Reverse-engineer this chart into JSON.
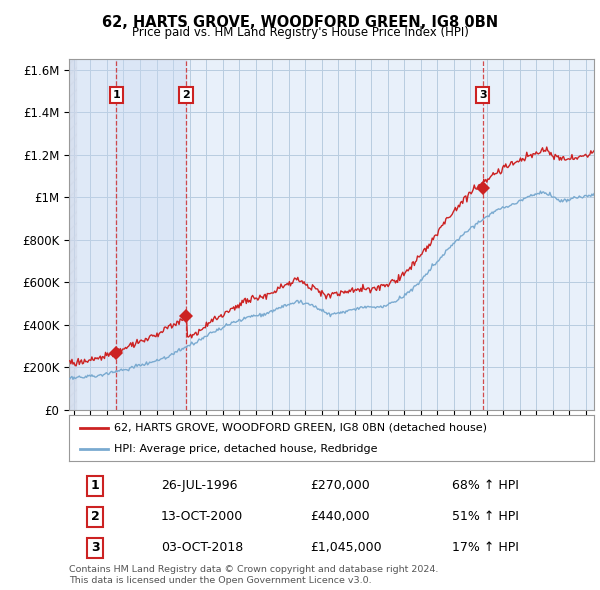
{
  "title": "62, HARTS GROVE, WOODFORD GREEN, IG8 0BN",
  "subtitle": "Price paid vs. HM Land Registry's House Price Index (HPI)",
  "ylim": [
    0,
    1650000
  ],
  "yticks": [
    0,
    200000,
    400000,
    600000,
    800000,
    1000000,
    1200000,
    1400000,
    1600000
  ],
  "ytick_labels": [
    "£0",
    "£200K",
    "£400K",
    "£600K",
    "£800K",
    "£1M",
    "£1.2M",
    "£1.4M",
    "£1.6M"
  ],
  "xlim_start": 1993.7,
  "xlim_end": 2025.5,
  "sale_dates": [
    1996.57,
    2000.79,
    2018.76
  ],
  "sale_prices": [
    270000,
    440000,
    1045000
  ],
  "sale_labels": [
    "1",
    "2",
    "3"
  ],
  "legend_line1": "62, HARTS GROVE, WOODFORD GREEN, IG8 0BN (detached house)",
  "legend_line2": "HPI: Average price, detached house, Redbridge",
  "table_data": [
    [
      "1",
      "26-JUL-1996",
      "£270,000",
      "68% ↑ HPI"
    ],
    [
      "2",
      "13-OCT-2000",
      "£440,000",
      "51% ↑ HPI"
    ],
    [
      "3",
      "03-OCT-2018",
      "£1,045,000",
      "17% ↑ HPI"
    ]
  ],
  "footer": "Contains HM Land Registry data © Crown copyright and database right 2024.\nThis data is licensed under the Open Government Licence v3.0.",
  "hpi_color": "#7aaad0",
  "sale_color": "#cc2222",
  "shade_color": "#c8d8f0",
  "background_color": "#e8f0fa",
  "grid_color": "#b8cce0",
  "hatch_color": "#c0cce0"
}
